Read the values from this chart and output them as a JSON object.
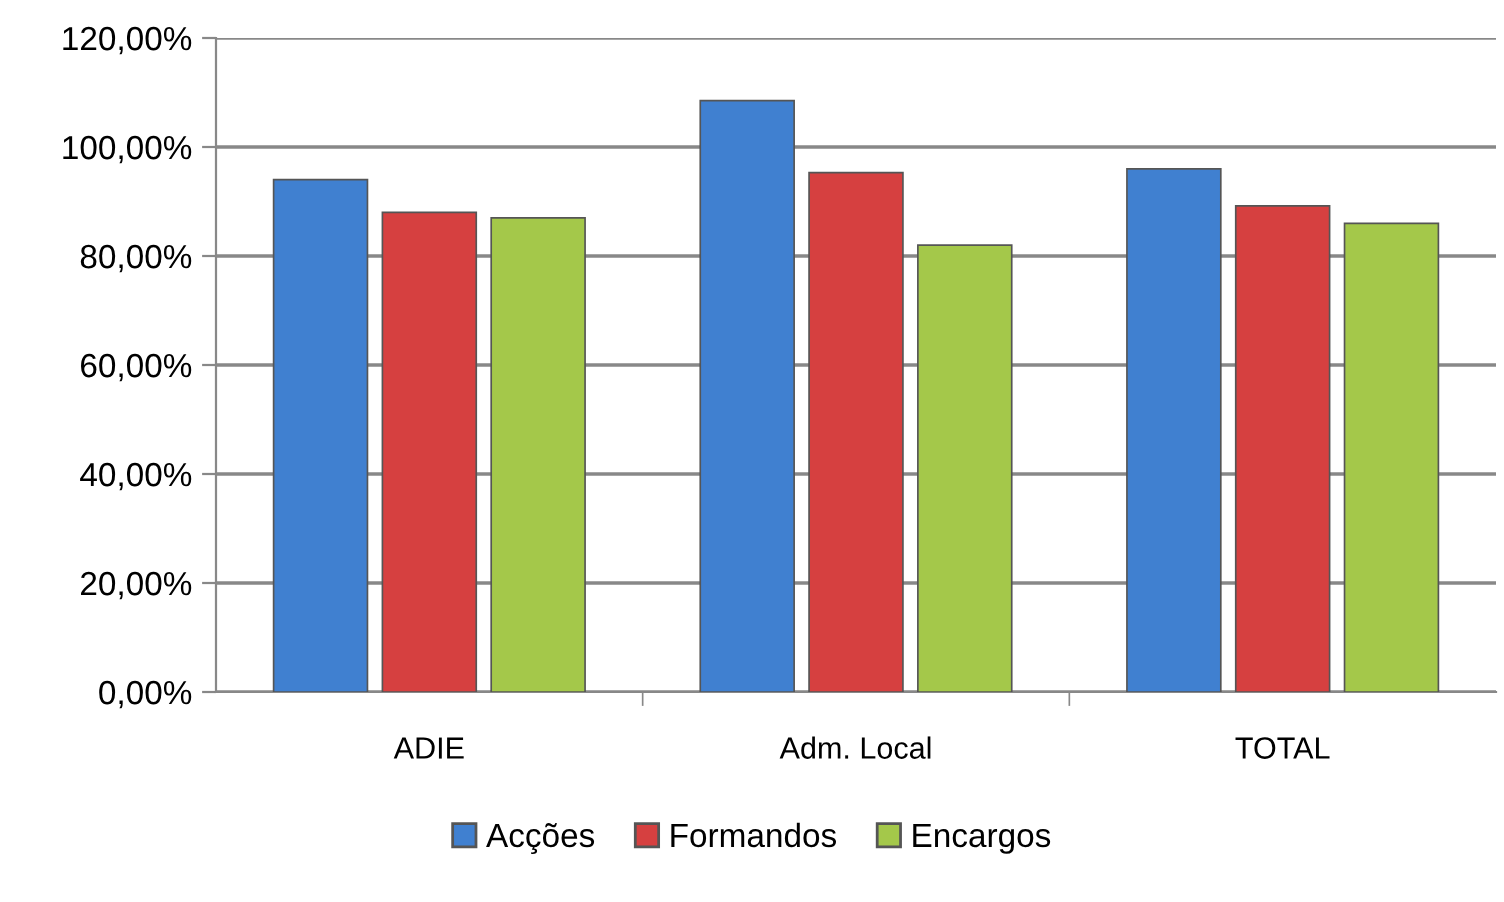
{
  "chart_data": {
    "type": "bar",
    "categories": [
      "ADIE",
      "Adm. Local",
      "TOTAL"
    ],
    "series": [
      {
        "name": "Acções",
        "color": "#4080d0",
        "values": [
          94,
          108.5,
          96
        ]
      },
      {
        "name": "Formandos",
        "color": "#d64040",
        "values": [
          88,
          95.3,
          89.2
        ]
      },
      {
        "name": "Encargos",
        "color": "#a4c84a",
        "values": [
          87,
          82,
          86
        ]
      }
    ],
    "ylim": [
      0,
      120
    ],
    "yticks": [
      {
        "value": 0,
        "label": "0,00%"
      },
      {
        "value": 20,
        "label": "20,00%"
      },
      {
        "value": 40,
        "label": "40,00%"
      },
      {
        "value": 60,
        "label": "60,00%"
      },
      {
        "value": 80,
        "label": "80,00%"
      },
      {
        "value": 100,
        "label": "100,00%"
      },
      {
        "value": 120,
        "label": "120,00%"
      }
    ],
    "grid": "y",
    "legend": "bottom"
  }
}
